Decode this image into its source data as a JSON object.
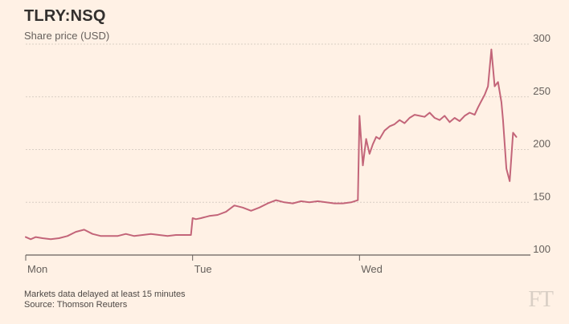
{
  "chart_data": {
    "type": "line",
    "title": "TLRY:NSQ",
    "subtitle": "Share price (USD)",
    "xlabel": "",
    "ylabel": "",
    "ylim": [
      100,
      300
    ],
    "xlim": [
      0,
      3.0
    ],
    "x_tick_values": [
      0,
      1,
      2
    ],
    "x_tick_labels": [
      "Mon",
      "Tue",
      "Wed"
    ],
    "y_ticks": [
      100,
      150,
      200,
      250,
      300
    ],
    "grid": true,
    "y_axis_side": "right",
    "series": [
      {
        "color": "#c36579",
        "x": [
          0,
          0.03,
          0.06,
          0.1,
          0.15,
          0.2,
          0.25,
          0.3,
          0.35,
          0.4,
          0.45,
          0.5,
          0.55,
          0.6,
          0.65,
          0.7,
          0.75,
          0.8,
          0.85,
          0.9,
          0.95,
          0.99,
          1.0,
          1.02,
          1.05,
          1.1,
          1.15,
          1.2,
          1.25,
          1.3,
          1.35,
          1.4,
          1.45,
          1.5,
          1.55,
          1.6,
          1.65,
          1.7,
          1.75,
          1.8,
          1.85,
          1.9,
          1.95,
          1.99,
          2.0,
          2.02,
          2.04,
          2.06,
          2.08,
          2.1,
          2.12,
          2.15,
          2.18,
          2.21,
          2.24,
          2.27,
          2.3,
          2.33,
          2.36,
          2.39,
          2.42,
          2.45,
          2.48,
          2.51,
          2.54,
          2.57,
          2.6,
          2.63,
          2.66,
          2.69,
          2.71,
          2.73,
          2.75,
          2.77,
          2.79,
          2.81,
          2.83,
          2.85,
          2.86,
          2.88,
          2.9,
          2.92,
          2.94
        ],
        "y": [
          117,
          115,
          117,
          116,
          115,
          116,
          118,
          122,
          124,
          120,
          118,
          118,
          118,
          120,
          118,
          119,
          120,
          119,
          118,
          119,
          119,
          119,
          135,
          134,
          135,
          137,
          138,
          141,
          147,
          145,
          142,
          145,
          149,
          152,
          150,
          149,
          151,
          150,
          151,
          150,
          149,
          149,
          150,
          152,
          232,
          185,
          210,
          196,
          205,
          212,
          210,
          218,
          222,
          224,
          228,
          225,
          230,
          233,
          232,
          231,
          235,
          230,
          228,
          232,
          226,
          230,
          227,
          232,
          235,
          233,
          240,
          246,
          252,
          260,
          295,
          260,
          264,
          245,
          228,
          182,
          170,
          216,
          212
        ]
      }
    ]
  },
  "footer": {
    "note": "Markets data delayed at least 15 minutes",
    "source": "Source: Thomson Reuters"
  },
  "logo": "FT",
  "colors": {
    "background": "#fff1e5",
    "line": "#c36579",
    "grid": "#d9cec4",
    "axis": "#66605c"
  }
}
